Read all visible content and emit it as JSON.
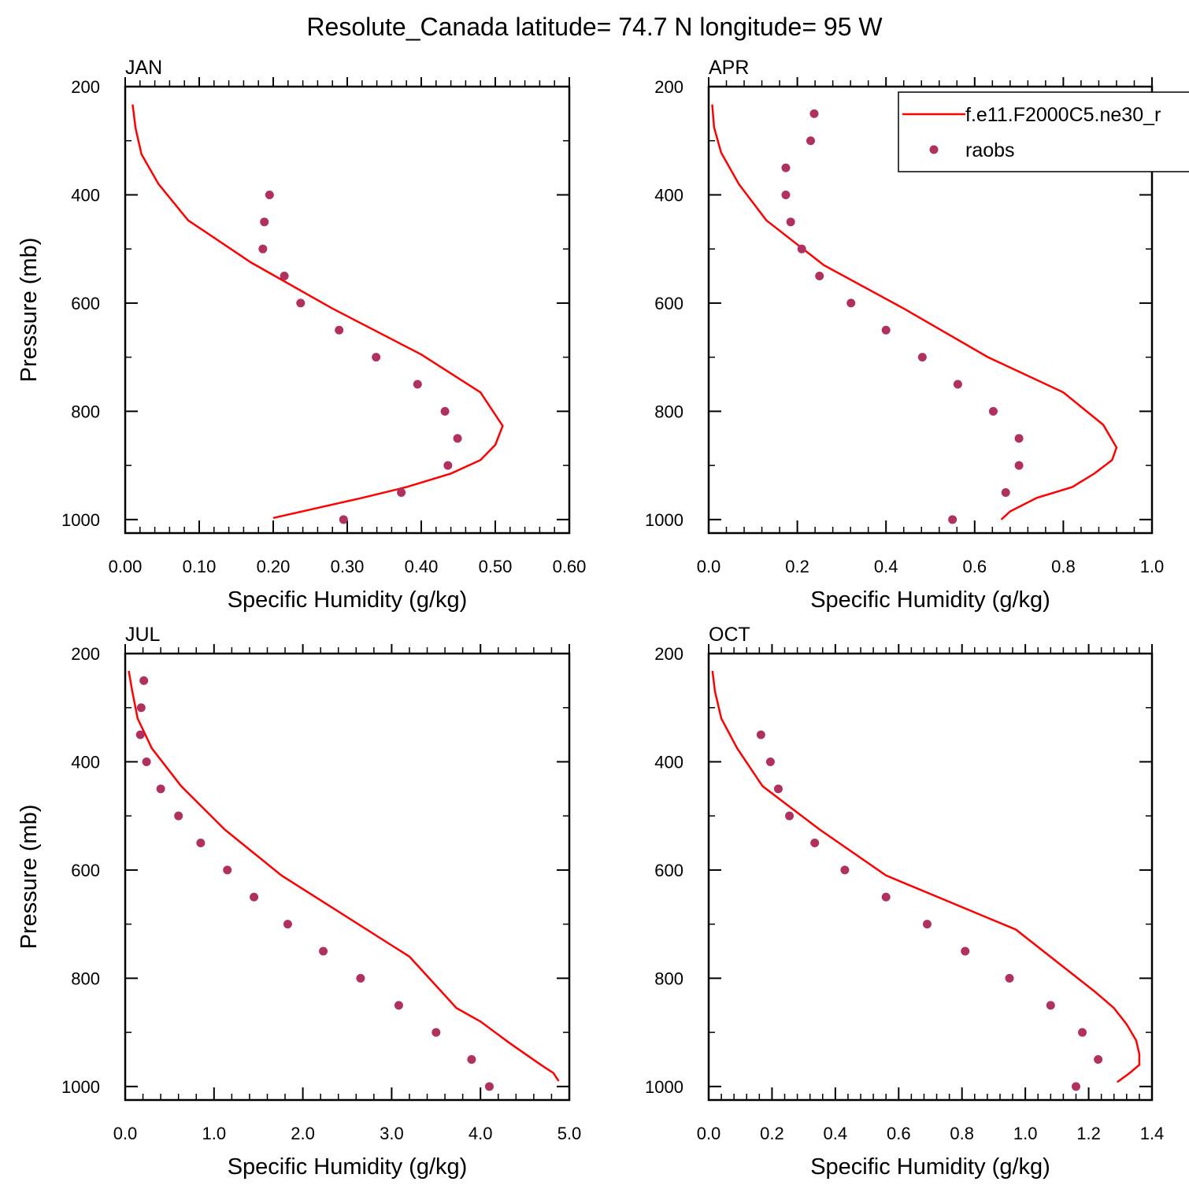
{
  "title": "Resolute_Canada  latitude= 74.7 N longitude= 95 W",
  "colors": {
    "model": "#ff0000",
    "raobs": "#b03060",
    "axis": "#000000"
  },
  "legend": {
    "model_label": "f.e11.F2000C5.ne30_r",
    "obs_label": "raobs",
    "placement": "top-right of APR panel"
  },
  "chart_data": [
    {
      "type": "line",
      "panel_label": "JAN",
      "xlabel": "Specific Humidity (g/kg)",
      "ylabel": "Pressure (mb)",
      "xlim": [
        0,
        0.6
      ],
      "ylim": [
        1025,
        200
      ],
      "y_inverted": true,
      "xticks": [
        0,
        0.1,
        0.2,
        0.3,
        0.4,
        0.5,
        0.6
      ],
      "xtick_labels": [
        "0.00",
        "0.10",
        "0.20",
        "0.30",
        "0.40",
        "0.50",
        "0.60"
      ],
      "yticks": [
        200,
        400,
        600,
        800,
        1000
      ],
      "ytick_labels": [
        "200",
        "400",
        "600",
        "800",
        "1000"
      ],
      "series": [
        {
          "name": "f.e11.F2000C5.ne30_r",
          "kind": "line",
          "x": [
            0.2,
            0.32,
            0.38,
            0.44,
            0.48,
            0.5,
            0.51,
            0.48,
            0.4,
            0.28,
            0.17,
            0.085,
            0.045,
            0.022,
            0.014,
            0.01
          ],
          "y": [
            997,
            960,
            940,
            915,
            890,
            862,
            827,
            765,
            695,
            610,
            525,
            447,
            380,
            325,
            277,
            233
          ]
        },
        {
          "name": "raobs",
          "kind": "scatter",
          "x": [
            0.295,
            0.373,
            0.436,
            0.449,
            0.432,
            0.395,
            0.339,
            0.289,
            0.237,
            0.215,
            0.186,
            0.188,
            0.195
          ],
          "y": [
            1000,
            950,
            900,
            850,
            800,
            750,
            700,
            650,
            600,
            550,
            500,
            450,
            400
          ]
        }
      ]
    },
    {
      "type": "line",
      "panel_label": "APR",
      "xlabel": "Specific Humidity (g/kg)",
      "ylabel": "",
      "xlim": [
        0,
        1.0
      ],
      "ylim": [
        1025,
        200
      ],
      "y_inverted": true,
      "xticks": [
        0,
        0.2,
        0.4,
        0.6,
        0.8,
        1.0
      ],
      "xtick_labels": [
        "0.0",
        "0.2",
        "0.4",
        "0.6",
        "0.8",
        "1.0"
      ],
      "yticks": [
        200,
        400,
        600,
        800,
        1000
      ],
      "ytick_labels": [
        "200",
        "400",
        "600",
        "800",
        "1000"
      ],
      "series": [
        {
          "name": "f.e11.F2000C5.ne30_r",
          "kind": "line",
          "x": [
            0.66,
            0.68,
            0.74,
            0.82,
            0.87,
            0.91,
            0.92,
            0.89,
            0.8,
            0.63,
            0.44,
            0.26,
            0.13,
            0.068,
            0.028,
            0.012,
            0.008
          ],
          "y": [
            1000,
            985,
            960,
            940,
            915,
            890,
            867,
            825,
            765,
            700,
            610,
            530,
            447,
            380,
            322,
            275,
            233
          ]
        },
        {
          "name": "raobs",
          "kind": "scatter",
          "x": [
            0.55,
            0.67,
            0.7,
            0.7,
            0.642,
            0.562,
            0.482,
            0.4,
            0.321,
            0.25,
            0.21,
            0.185,
            0.174,
            0.174,
            0.23,
            0.238
          ],
          "y": [
            1000,
            950,
            900,
            850,
            800,
            750,
            700,
            650,
            600,
            550,
            500,
            450,
            400,
            350,
            300,
            250
          ]
        }
      ]
    },
    {
      "type": "line",
      "panel_label": "JUL",
      "xlabel": "Specific Humidity (g/kg)",
      "ylabel": "Pressure (mb)",
      "xlim": [
        0,
        5.0
      ],
      "ylim": [
        1025,
        200
      ],
      "y_inverted": true,
      "xticks": [
        0,
        1,
        2,
        3,
        4,
        5
      ],
      "xtick_labels": [
        "0.0",
        "1.0",
        "2.0",
        "3.0",
        "4.0",
        "5.0"
      ],
      "yticks": [
        200,
        400,
        600,
        800,
        1000
      ],
      "ytick_labels": [
        "200",
        "400",
        "600",
        "800",
        "1000"
      ],
      "series": [
        {
          "name": "f.e11.F2000C5.ne30_r",
          "kind": "line",
          "x": [
            4.88,
            4.82,
            4.68,
            4.33,
            4.0,
            3.73,
            3.2,
            1.76,
            1.12,
            0.63,
            0.3,
            0.14,
            0.08,
            0.04
          ],
          "y": [
            990,
            975,
            960,
            920,
            880,
            855,
            760,
            610,
            525,
            445,
            375,
            320,
            270,
            232
          ]
        },
        {
          "name": "raobs",
          "kind": "scatter",
          "x": [
            4.1,
            3.9,
            3.5,
            3.08,
            2.65,
            2.23,
            1.83,
            1.45,
            1.15,
            0.85,
            0.6,
            0.4,
            0.24,
            0.17,
            0.18,
            0.21
          ],
          "y": [
            1000,
            950,
            900,
            850,
            800,
            750,
            700,
            650,
            600,
            550,
            500,
            450,
            400,
            350,
            300,
            250
          ]
        }
      ]
    },
    {
      "type": "line",
      "panel_label": "OCT",
      "xlabel": "Specific Humidity (g/kg)",
      "ylabel": "",
      "xlim": [
        0,
        1.4
      ],
      "ylim": [
        1025,
        200
      ],
      "y_inverted": true,
      "xticks": [
        0,
        0.2,
        0.4,
        0.6,
        0.8,
        1.0,
        1.2,
        1.4
      ],
      "xtick_labels": [
        "0.0",
        "0.2",
        "0.4",
        "0.6",
        "0.8",
        "1.0",
        "1.2",
        "1.4"
      ],
      "yticks": [
        200,
        400,
        600,
        800,
        1000
      ],
      "ytick_labels": [
        "200",
        "400",
        "600",
        "800",
        "1000"
      ],
      "series": [
        {
          "name": "f.e11.F2000C5.ne30_r",
          "kind": "line",
          "x": [
            1.29,
            1.33,
            1.36,
            1.36,
            1.35,
            1.32,
            1.28,
            1.22,
            0.97,
            0.56,
            0.35,
            0.17,
            0.09,
            0.04,
            0.02,
            0.012
          ],
          "y": [
            992,
            975,
            960,
            940,
            915,
            885,
            855,
            825,
            710,
            610,
            525,
            445,
            375,
            320,
            270,
            232
          ]
        },
        {
          "name": "raobs",
          "kind": "scatter",
          "x": [
            1.16,
            1.23,
            1.18,
            1.08,
            0.95,
            0.81,
            0.69,
            0.56,
            0.43,
            0.335,
            0.255,
            0.22,
            0.195,
            0.165
          ],
          "y": [
            1000,
            950,
            900,
            850,
            800,
            750,
            700,
            650,
            600,
            550,
            500,
            450,
            400,
            350
          ]
        }
      ]
    }
  ]
}
